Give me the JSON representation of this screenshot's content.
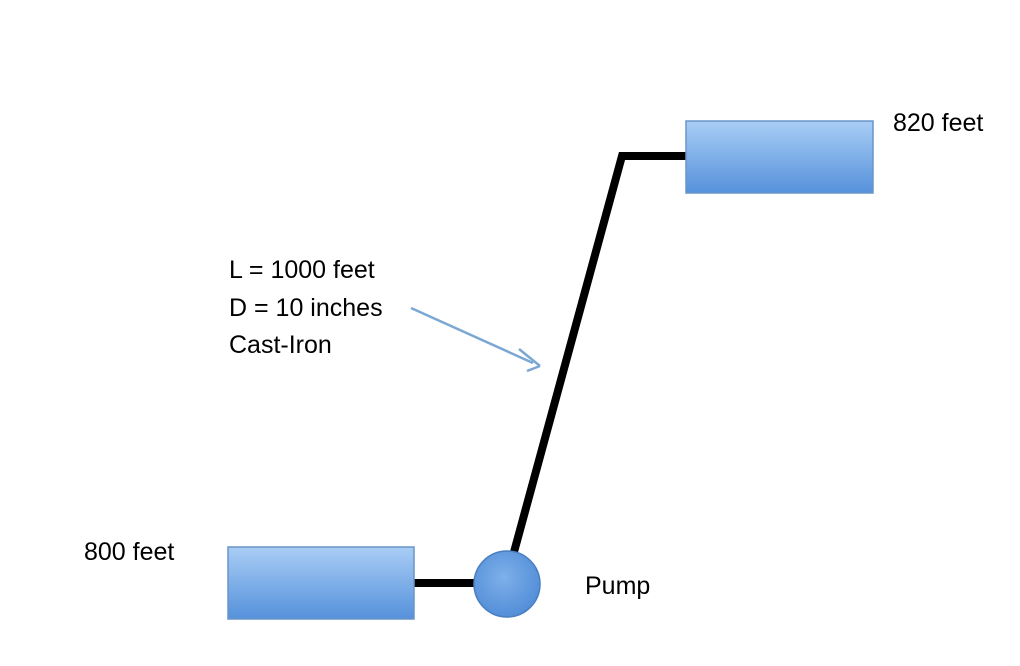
{
  "colors": {
    "tank_fill_top": "#a9cdf5",
    "tank_fill_bottom": "#5591db",
    "tank_stroke": "#6a95c8",
    "pipe": "#000000",
    "arrow": "#7ba7d3",
    "pump_fill": "#5f98de"
  },
  "upper_tank": {
    "elevation_label": "820 feet"
  },
  "lower_tank": {
    "elevation_label": "800 feet"
  },
  "pump": {
    "label": "Pump"
  },
  "pipe": {
    "length": "L = 1000 feet",
    "diameter": "D = 10 inches",
    "material": "Cast-Iron"
  }
}
